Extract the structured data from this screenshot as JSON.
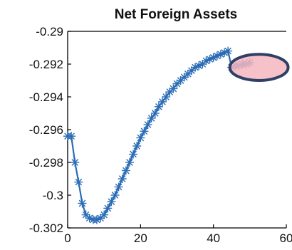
{
  "chart_data": {
    "type": "line",
    "title": "Net Foreign Assets",
    "xlabel": "",
    "ylabel": "",
    "xlim": [
      0,
      60
    ],
    "ylim": [
      -0.302,
      -0.29
    ],
    "x_ticks": [
      "0",
      "20",
      "40",
      "60"
    ],
    "y_ticks": [
      "-0.29",
      "-0.292",
      "-0.294",
      "-0.296",
      "-0.298",
      "-0.3",
      "-0.302"
    ],
    "grid": false,
    "marker": "asterisk",
    "series_color": "#2a6cb5",
    "highlight": {
      "shape": "ellipse",
      "fill": "#f4b6bf",
      "stroke": "#2f3f66",
      "x_range": [
        44.5,
        60.5
      ],
      "y_range": [
        -0.293,
        -0.2914
      ]
    },
    "series": [
      {
        "x": [
          0,
          1,
          2,
          3,
          4,
          5,
          6,
          7,
          8,
          9,
          10,
          11,
          12,
          13,
          14,
          15,
          16,
          17,
          18,
          19,
          20,
          21,
          22,
          23,
          24,
          25,
          26,
          27,
          28,
          29,
          30,
          31,
          32,
          33,
          34,
          35,
          36,
          37,
          38,
          39,
          40,
          41,
          42,
          43,
          44,
          45,
          46,
          47,
          48,
          49,
          50
        ],
        "values": [
          -0.2964,
          -0.2964,
          -0.298,
          -0.2992,
          -0.3005,
          -0.3012,
          -0.3014,
          -0.3015,
          -0.3015,
          -0.3014,
          -0.3012,
          -0.3008,
          -0.3004,
          -0.3,
          -0.2995,
          -0.299,
          -0.2985,
          -0.298,
          -0.2975,
          -0.297,
          -0.2965,
          -0.2961,
          -0.2957,
          -0.2953,
          -0.295,
          -0.2946,
          -0.2943,
          -0.294,
          -0.2937,
          -0.2935,
          -0.2932,
          -0.293,
          -0.2928,
          -0.2926,
          -0.2924,
          -0.2922,
          -0.2921,
          -0.292,
          -0.2918,
          -0.2917,
          -0.2916,
          -0.2915,
          -0.2914,
          -0.2913,
          -0.2912,
          -0.2922,
          -0.2921,
          -0.2921,
          -0.292,
          -0.292,
          -0.2919
        ]
      }
    ]
  }
}
